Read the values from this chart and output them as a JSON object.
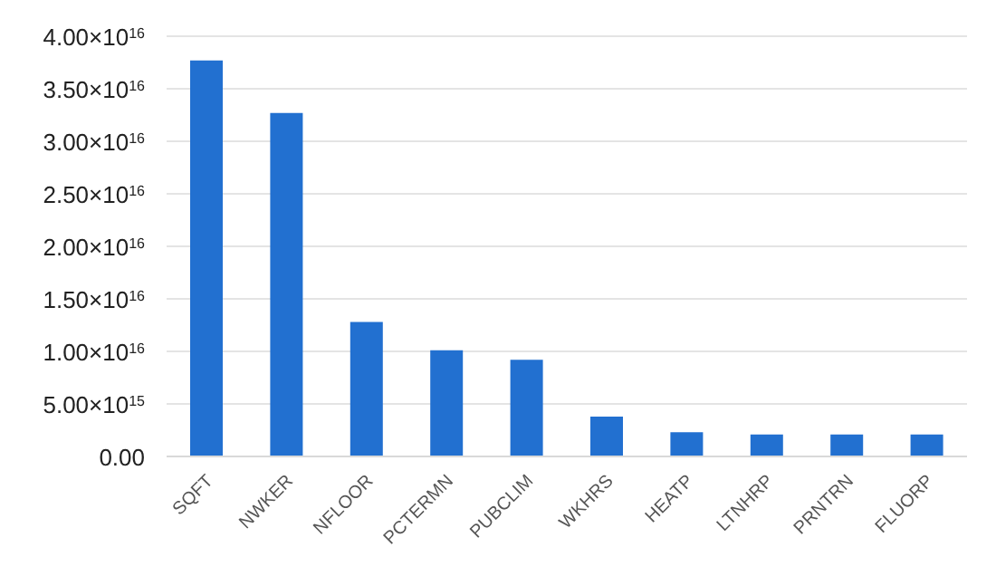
{
  "chart_data": {
    "type": "bar",
    "categories": [
      "SQFT",
      "NWKER",
      "NFLOOR",
      "PCTERMN",
      "PUBCLIM",
      "WKHRS",
      "HEATP",
      "LTNHRP",
      "PRNTRN",
      "FLUORP"
    ],
    "values": [
      3.77e+16,
      3.27e+16,
      1.28e+16,
      1.01e+16,
      9200000000000000.0,
      3800000000000000.0,
      2300000000000000.0,
      2100000000000000.0,
      2100000000000000.0,
      2100000000000000.0
    ],
    "color": "#2270d0",
    "ylim": [
      0,
      4e+16
    ],
    "yticks": [
      {
        "value": 0,
        "label": "0.00"
      },
      {
        "value": 5000000000000000.0,
        "label": "5.00×10$^{15}$"
      },
      {
        "value": 1e+16,
        "label": "1.00×10$^{16}$"
      },
      {
        "value": 1.5e+16,
        "label": "1.50×10$^{16}$"
      },
      {
        "value": 2e+16,
        "label": "2.00×10$^{16}$"
      },
      {
        "value": 2.5e+16,
        "label": "2.50×10$^{16}$"
      },
      {
        "value": 3e+16,
        "label": "3.00×10$^{16}$"
      },
      {
        "value": 3.5e+16,
        "label": "3.50×10$^{16}$"
      },
      {
        "value": 4e+16,
        "label": "4.00×10$^{16}$"
      }
    ],
    "grid": "y"
  }
}
